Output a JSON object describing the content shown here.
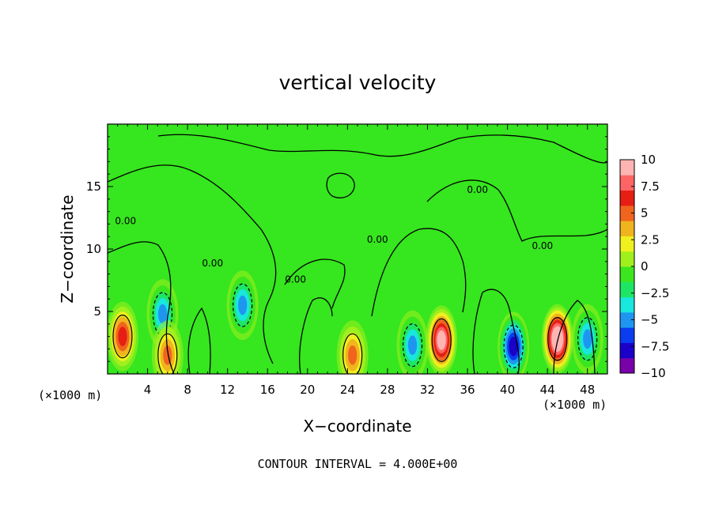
{
  "chart_data": {
    "type": "heatmap",
    "title": "vertical velocity",
    "xlabel": "X−coordinate",
    "ylabel": "Z−coordinate",
    "x_unit_left": "(×1000 m)",
    "x_unit_right": "(×1000 m)",
    "footer": "CONTOUR INTERVAL = 4.000E+00",
    "xlim": [
      0,
      50
    ],
    "ylim": [
      0,
      20
    ],
    "x_ticks": [
      4,
      8,
      12,
      16,
      20,
      24,
      28,
      32,
      36,
      40,
      44,
      48
    ],
    "x_tick_labels": [
      "4",
      "8",
      "12",
      "16",
      "20",
      "24",
      "28",
      "32",
      "36",
      "40",
      "44",
      "48"
    ],
    "y_ticks": [
      5,
      10,
      15
    ],
    "y_tick_labels": [
      "5",
      "10",
      "15"
    ],
    "colorbar": {
      "range": [
        -10,
        10
      ],
      "tick_values": [
        10,
        7.5,
        5,
        2.5,
        0,
        -2.5,
        -5,
        -7.5,
        -10
      ],
      "tick_labels": [
        "10",
        "7.5",
        "5",
        "2.5",
        "0",
        "−2.5",
        "−5",
        "−7.5",
        "−10"
      ],
      "colors": [
        "#7a00aa",
        "#1a00c8",
        "#0a3cf0",
        "#1e96f0",
        "#19e6dc",
        "#1ee664",
        "#3ce61e",
        "#a0f01e",
        "#f0f01e",
        "#f0b41e",
        "#f0641e",
        "#e61e14",
        "#ff6464",
        "#ffb4b4"
      ]
    },
    "contour_labels": [
      {
        "x": 1.8,
        "y": 12.0,
        "text": "0.00"
      },
      {
        "x": 10.5,
        "y": 8.6,
        "text": "0.00"
      },
      {
        "x": 18.8,
        "y": 7.3,
        "text": "0.00"
      },
      {
        "x": 27.0,
        "y": 10.5,
        "text": "0.00"
      },
      {
        "x": 37.0,
        "y": 14.5,
        "text": "0.00"
      },
      {
        "x": 43.5,
        "y": 10.0,
        "text": "0.00"
      }
    ],
    "extrema": [
      {
        "x": 1.5,
        "y": 3.0,
        "value": 7.0
      },
      {
        "x": 5.5,
        "y": 4.8,
        "value": -5.0
      },
      {
        "x": 6.0,
        "y": 1.5,
        "value": 5.0
      },
      {
        "x": 13.5,
        "y": 5.5,
        "value": -4.5
      },
      {
        "x": 24.5,
        "y": 1.5,
        "value": 5.0
      },
      {
        "x": 30.5,
        "y": 2.3,
        "value": -5.5
      },
      {
        "x": 33.4,
        "y": 2.7,
        "value": 9.0
      },
      {
        "x": 40.6,
        "y": 2.2,
        "value": -8.0
      },
      {
        "x": 45.0,
        "y": 2.8,
        "value": 10.5
      },
      {
        "x": 48.0,
        "y": 2.8,
        "value": -5.0
      }
    ]
  }
}
